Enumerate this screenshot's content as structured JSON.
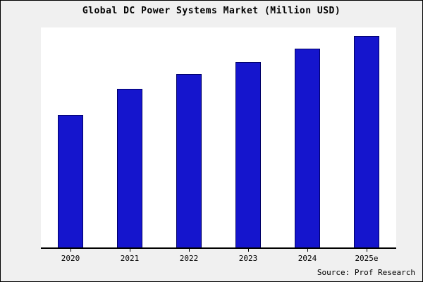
{
  "title": "Global DC Power Systems Market (Million USD)",
  "source_label": "Source: Prof Research",
  "colors": {
    "background": "#f0f0f0",
    "plot_background": "#ffffff",
    "bar_fill": "#1515cd",
    "bar_edge": "#000066",
    "axis": "#000000"
  },
  "chart_data": {
    "type": "bar",
    "title": "Global DC Power Systems Market (Million USD)",
    "categories": [
      "2020",
      "2021",
      "2022",
      "2023",
      "2024",
      "2025e"
    ],
    "values": [
      62.7,
      75.0,
      82.0,
      87.7,
      94.0,
      100.0
    ],
    "xlabel": "",
    "ylabel": "",
    "ylim": [
      0,
      104
    ],
    "y_ticks": [],
    "grid": false,
    "legend": null,
    "note": "No y-axis tick labels are visible in the chart; values are relative bar heights estimated with 2025e = 100."
  }
}
